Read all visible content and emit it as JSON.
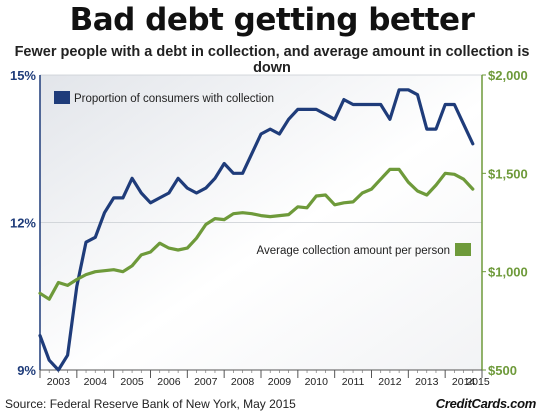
{
  "chart_data": {
    "type": "line",
    "title": "Bad debt getting better",
    "subtitle": "Fewer people with a debt in collection, and average amount in collection is down",
    "source": "Source: Federal Reserve Bank of New York, May 2015",
    "brand": "CreditCards.com",
    "x_ticks": [
      "2003",
      "2004",
      "2005",
      "2006",
      "2007",
      "2008",
      "2009",
      "2010",
      "2011",
      "2012",
      "2013",
      "2014",
      "2015"
    ],
    "x_range": [
      2003,
      2015
    ],
    "y_left": {
      "ticks": [
        "15%",
        "12%",
        "9%"
      ],
      "values": [
        15,
        12,
        9
      ],
      "range": [
        9,
        15
      ]
    },
    "y_right": {
      "ticks": [
        "$2,000",
        "$1,500",
        "$1,000",
        "$500"
      ],
      "values": [
        2000,
        1500,
        1000,
        500
      ],
      "range": [
        500,
        2000
      ]
    },
    "legend_placement": "top-left",
    "series": [
      {
        "name": "Proportion of consumers with collection",
        "axis": "left",
        "color": "#1f3c7a",
        "x": [
          2003.0,
          2003.25,
          2003.5,
          2003.75,
          2004.0,
          2004.25,
          2004.5,
          2004.75,
          2005.0,
          2005.25,
          2005.5,
          2005.75,
          2006.0,
          2006.25,
          2006.5,
          2006.75,
          2007.0,
          2007.25,
          2007.5,
          2007.75,
          2008.0,
          2008.25,
          2008.5,
          2008.75,
          2009.0,
          2009.25,
          2009.5,
          2009.75,
          2010.0,
          2010.25,
          2010.5,
          2010.75,
          2011.0,
          2011.25,
          2011.5,
          2011.75,
          2012.0,
          2012.25,
          2012.5,
          2012.75,
          2013.0,
          2013.25,
          2013.5,
          2013.75,
          2014.0,
          2014.25,
          2014.5,
          2014.75
        ],
        "values": [
          9.7,
          9.2,
          9.0,
          9.3,
          10.7,
          11.6,
          11.7,
          12.2,
          12.5,
          12.5,
          12.9,
          12.6,
          12.4,
          12.5,
          12.6,
          12.9,
          12.7,
          12.6,
          12.7,
          12.9,
          13.2,
          13.0,
          13.0,
          13.4,
          13.8,
          13.9,
          13.8,
          14.1,
          14.3,
          14.3,
          14.3,
          14.2,
          14.1,
          14.5,
          14.4,
          14.4,
          14.4,
          14.4,
          14.1,
          14.7,
          14.7,
          14.6,
          13.9,
          13.9,
          14.4,
          14.4,
          14.0,
          13.6
        ]
      },
      {
        "name": "Average collection amount per person",
        "axis": "right",
        "color": "#6e9a3a",
        "x": [
          2003.0,
          2003.25,
          2003.5,
          2003.75,
          2004.0,
          2004.25,
          2004.5,
          2004.75,
          2005.0,
          2005.25,
          2005.5,
          2005.75,
          2006.0,
          2006.25,
          2006.5,
          2006.75,
          2007.0,
          2007.25,
          2007.5,
          2007.75,
          2008.0,
          2008.25,
          2008.5,
          2008.75,
          2009.0,
          2009.25,
          2009.5,
          2009.75,
          2010.0,
          2010.25,
          2010.5,
          2010.75,
          2011.0,
          2011.25,
          2011.5,
          2011.75,
          2012.0,
          2012.25,
          2012.5,
          2012.75,
          2013.0,
          2013.25,
          2013.5,
          2013.75,
          2014.0,
          2014.25,
          2014.5,
          2014.75
        ],
        "values": [
          890,
          860,
          945,
          930,
          960,
          985,
          1000,
          1005,
          1010,
          1000,
          1030,
          1085,
          1100,
          1145,
          1120,
          1110,
          1120,
          1170,
          1240,
          1270,
          1265,
          1295,
          1300,
          1295,
          1285,
          1280,
          1285,
          1290,
          1330,
          1325,
          1385,
          1390,
          1340,
          1350,
          1355,
          1400,
          1420,
          1470,
          1520,
          1520,
          1455,
          1410,
          1390,
          1440,
          1500,
          1495,
          1470,
          1420
        ]
      }
    ]
  }
}
